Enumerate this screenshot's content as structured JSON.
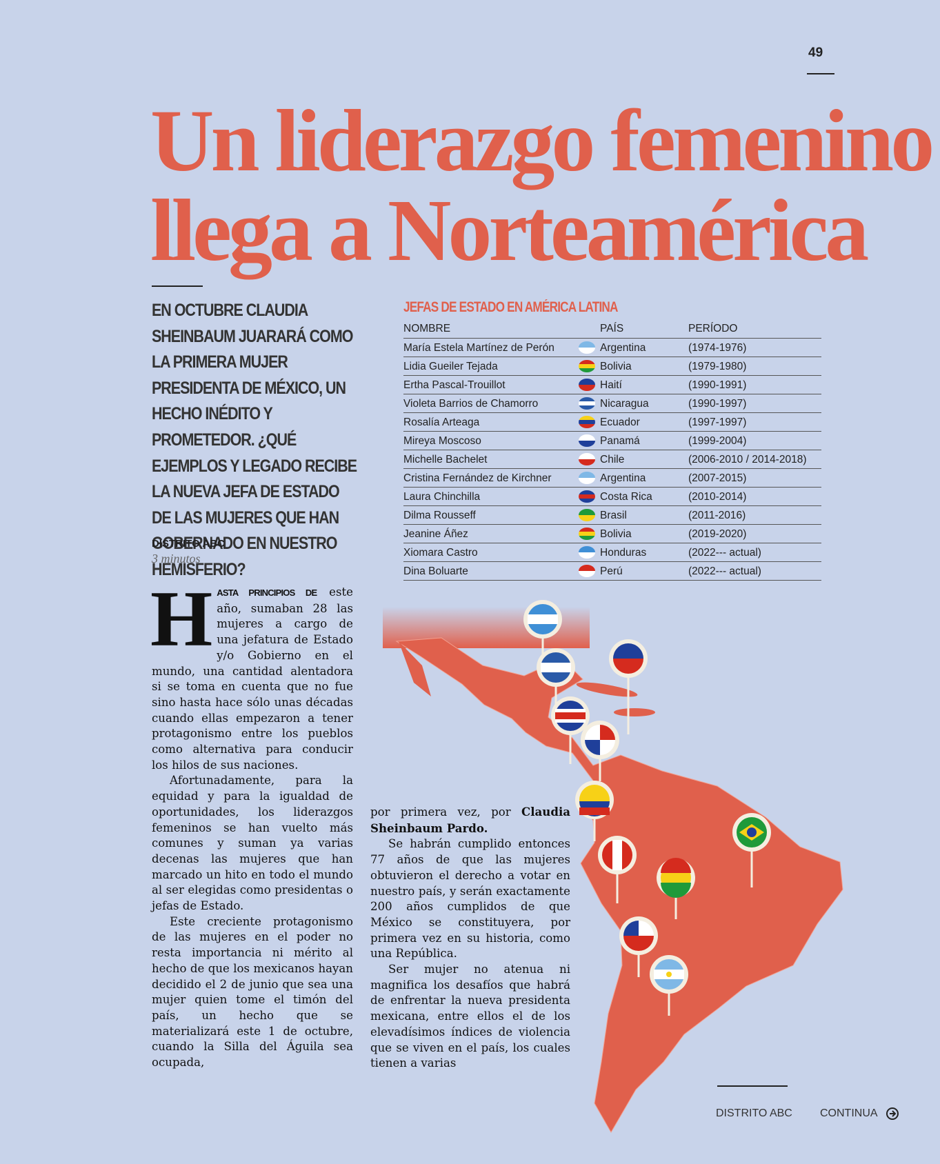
{
  "page_number": "49",
  "title": [
    "Un liderazgo femenino",
    "llega a Norteamérica"
  ],
  "lead": "EN OCTUBRE CLAUDIA SHEINBAUM JUARARÁ COMO LA PRIMERA MUJER PRESIDENTA DE MÉXICO, UN HECHO INÉDITO Y PROMETEDOR. ¿QUÉ EJEMPLOS Y LEGADO RECIBE LA NUEVA JEFA DE ESTADO DE LAS MUJERES QUE HAN GOBERNADO EN NUESTRO HEMISFERIO?",
  "byline": {
    "source": "DISTRITO ABC",
    "read_time": "3 minutos"
  },
  "body": {
    "drop_cap": "H",
    "lead_in": "ASTA PRINCIPIOS DE",
    "column1": [
      "este año, sumaban 28 las mujeres a cargo de una jefatura de Estado y/o Gobierno en el mundo, una cantidad alentadora si se toma en cuenta que no fue sino hasta hace sólo unas décadas cuando ellas empezaron a tener protagonismo entre los pueblos como alternativa para conducir los hilos de sus naciones.",
      "Afortunadamente, para la equidad y para la igualdad de oportunidades, los liderazgos femeninos se han vuelto más comunes y suman ya varias decenas las mujeres que han marcado un hito en todo el mundo al ser elegidas como presidentas o jefas de Estado.",
      "Este creciente protagonismo de las mujeres en el poder no resta importancia ni mérito al hecho de que los mexicanos hayan decidido el 2 de junio que sea una mujer quien tome el timón del país, un hecho que se materializará este 1 de octubre, cuando la Silla del Águila sea ocupada,"
    ],
    "column2_start": "por primera vez, por",
    "column2_bold": "Claudia Sheinbaum Pardo.",
    "column2": [
      "Se habrán cumplido entonces 77 años de que las mujeres obtuvieron el derecho a votar en nuestro país, y serán exactamente 200 años cumplidos de que México se constituyera, por primera vez en su historia, como una República.",
      "Ser mujer no atenua ni magnifica los desafíos que habrá de enfrentar la nueva presidenta mexicana, entre ellos el de los elevadísimos índices de violencia que se viven en el país, los cuales tienen a varias"
    ]
  },
  "table": {
    "title": "JEFAS DE ESTADO EN AMÉRICA LATINA",
    "headers": [
      "NOMBRE",
      "PAÍS",
      "PERÍODO"
    ],
    "rows": [
      [
        "María Estela Martínez de Perón",
        "Argentina",
        "(1974-1976)"
      ],
      [
        "Lidia Gueiler Tejada",
        "Bolivia",
        "(1979-1980)"
      ],
      [
        "Ertha Pascal-Trouillot",
        "Haití",
        "(1990-1991)"
      ],
      [
        "Violeta Barrios de Chamorro",
        "Nicaragua",
        "(1990-1997)"
      ],
      [
        "Rosalía Arteaga",
        "Ecuador",
        "(1997-1997)"
      ],
      [
        "Mireya Moscoso",
        "Panamá",
        "(1999-2004)"
      ],
      [
        "Michelle Bachelet",
        "Chile",
        "(2006-2010 / 2014-2018)"
      ],
      [
        "Cristina Fernández de Kirchner",
        "Argentina",
        "(2007-2015)"
      ],
      [
        "Laura Chinchilla",
        "Costa Rica",
        "(2010-2014)"
      ],
      [
        "Dilma Rousseff",
        "Brasil",
        "(2011-2016)"
      ],
      [
        "Jeanine Áñez",
        "Bolivia",
        "(2019-2020)"
      ],
      [
        "Xiomara Castro",
        "Honduras",
        "(2022--- actual)"
      ],
      [
        "Dina Boluarte",
        "Perú",
        "(2022--- actual)"
      ]
    ]
  },
  "footer": {
    "source": "DISTRITO ABC",
    "continue": "CONTINUA"
  }
}
